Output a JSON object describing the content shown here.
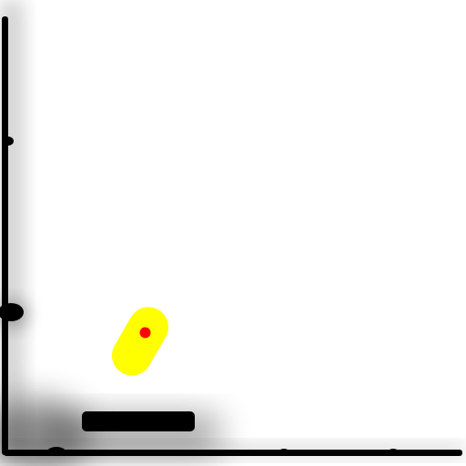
{
  "scene": {
    "background": "#ffffff",
    "wall_color": "#000000",
    "shadow_color": "#000000",
    "agent": {
      "body_color": "#ffff00",
      "marker_color": "#ff0000",
      "heading_deg": -60
    },
    "objects": [
      {
        "name": "left-wall",
        "kind": "wall"
      },
      {
        "name": "floor",
        "kind": "wall"
      },
      {
        "name": "paddle-block",
        "kind": "obstacle"
      }
    ]
  }
}
